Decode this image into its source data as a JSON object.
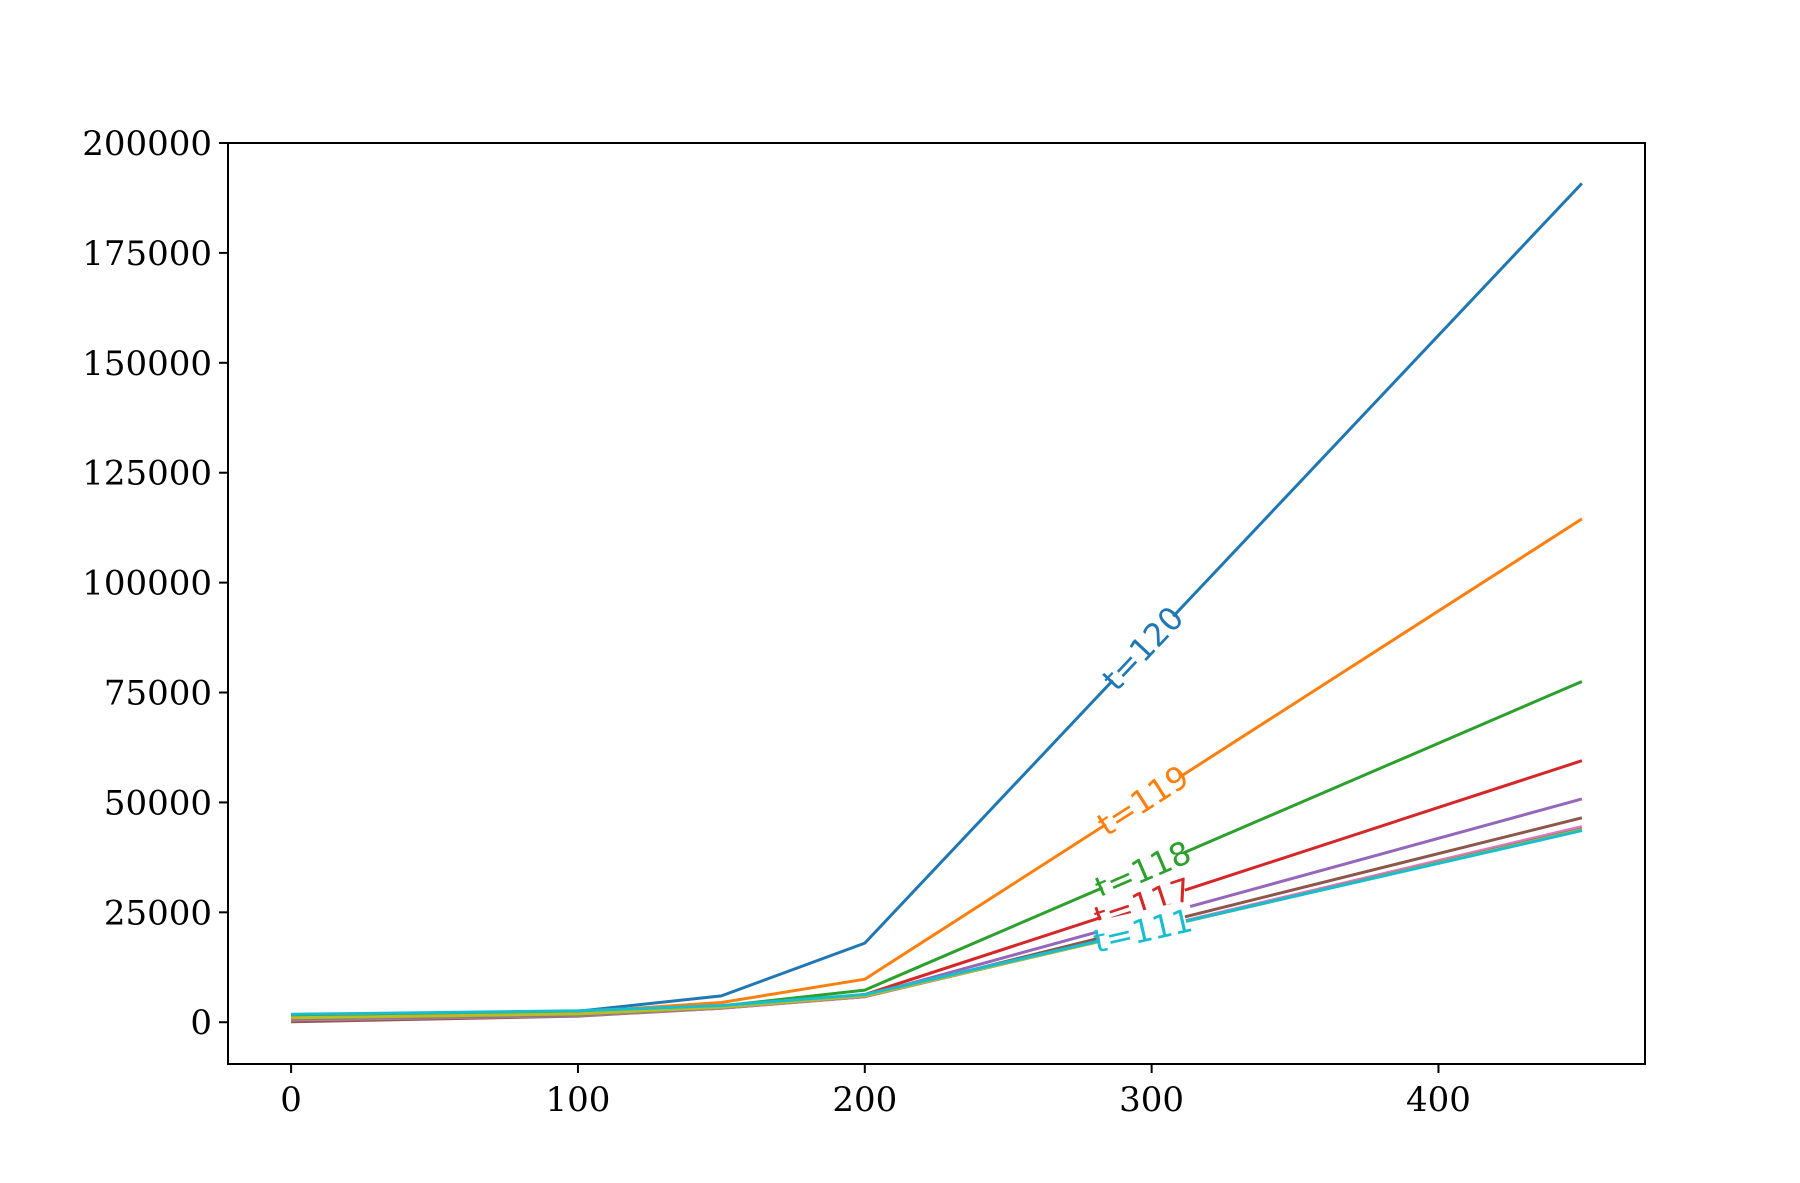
{
  "chart_data": {
    "type": "line",
    "title": "",
    "xlabel": "",
    "ylabel": "",
    "xlim": [
      -22,
      472
    ],
    "ylim": [
      -9500,
      200000
    ],
    "xticks": [
      0,
      100,
      200,
      300,
      400
    ],
    "yticks": [
      0,
      25000,
      50000,
      75000,
      100000,
      125000,
      150000,
      175000,
      200000
    ],
    "xtick_labels": [
      "0",
      "100",
      "200",
      "300",
      "400"
    ],
    "ytick_labels": [
      "0",
      "25000",
      "50000",
      "75000",
      "100000",
      "125000",
      "150000",
      "175000",
      "200000"
    ],
    "grid": false,
    "legend": "none",
    "x": [
      0,
      100,
      150,
      200,
      450
    ],
    "series": [
      {
        "name": "t=120",
        "color": "#1f77b4",
        "values": [
          1700,
          2500,
          6000,
          18000,
          190800
        ],
        "label_at_x": 297
      },
      {
        "name": "t=119",
        "color": "#ff7f0e",
        "values": [
          1500,
          2300,
          4500,
          9800,
          114500
        ],
        "label_at_x": 297
      },
      {
        "name": "t=118",
        "color": "#2ca02c",
        "values": [
          1300,
          2100,
          3700,
          7300,
          77500
        ],
        "label_at_x": 297
      },
      {
        "name": "t=117",
        "color": "#d62728",
        "values": [
          1000,
          1800,
          3400,
          6300,
          59500
        ],
        "label_at_x": 297
      },
      {
        "name": "",
        "color": "#9467bd",
        "values": [
          800,
          1600,
          3300,
          6000,
          50800
        ]
      },
      {
        "name": "",
        "color": "#8c564b",
        "values": [
          100,
          1400,
          3200,
          5800,
          46500
        ]
      },
      {
        "name": "",
        "color": "#e377c2",
        "values": [
          500,
          1500,
          3200,
          5800,
          44500
        ]
      },
      {
        "name": "",
        "color": "#7f7f7f",
        "values": [
          700,
          1600,
          3300,
          5900,
          44000
        ]
      },
      {
        "name": "",
        "color": "#bcbd22",
        "values": [
          1000,
          1900,
          3400,
          6000,
          43800
        ]
      },
      {
        "name": "t=111",
        "color": "#17becf",
        "values": [
          1800,
          2600,
          3800,
          6300,
          43600
        ],
        "label_at_x": 297
      }
    ]
  }
}
